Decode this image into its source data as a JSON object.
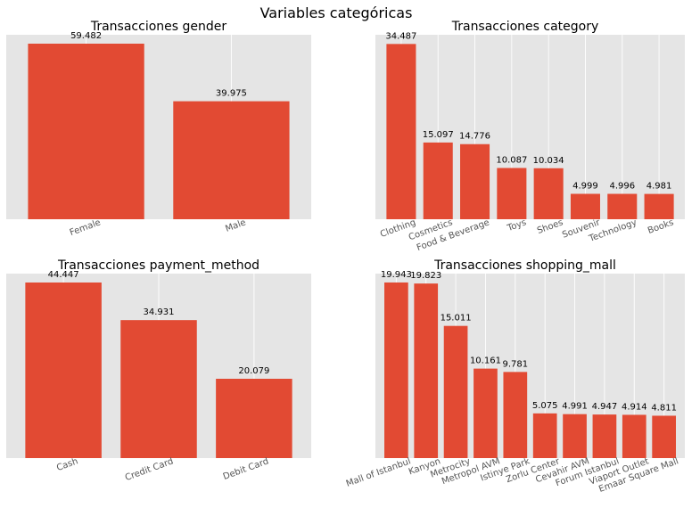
{
  "figure": {
    "title": "Variables categóricas"
  },
  "colors": {
    "bar": "#E24A33",
    "panel_background": "#E5E5E5",
    "grid": "#FFFFFF",
    "tick_text": "#555555"
  },
  "chart_data": [
    {
      "type": "bar",
      "title": "Transacciones gender",
      "categories": [
        "Female",
        "Male"
      ],
      "values": [
        59.482,
        39.975
      ],
      "data_labels": [
        "59.482",
        "39.975"
      ],
      "xlabel": "",
      "ylabel": "",
      "tick_rotation": 20,
      "grid": true
    },
    {
      "type": "bar",
      "title": "Transacciones category",
      "categories": [
        "Clothing",
        "Cosmetics",
        "Food & Beverage",
        "Toys",
        "Shoes",
        "Souvenir",
        "Technology",
        "Books"
      ],
      "values": [
        34.487,
        15.097,
        14.776,
        10.087,
        10.034,
        4.999,
        4.996,
        4.981
      ],
      "data_labels": [
        "34.487",
        "15.097",
        "14.776",
        "10.087",
        "10.034",
        "4.999",
        "4.996",
        "4.981"
      ],
      "xlabel": "",
      "ylabel": "",
      "tick_rotation": 20,
      "grid": true
    },
    {
      "type": "bar",
      "title": "Transacciones payment_method",
      "categories": [
        "Cash",
        "Credit Card",
        "Debit Card"
      ],
      "values": [
        44.447,
        34.931,
        20.079
      ],
      "data_labels": [
        "44.447",
        "34.931",
        "20.079"
      ],
      "xlabel": "",
      "ylabel": "",
      "tick_rotation": 20,
      "grid": true
    },
    {
      "type": "bar",
      "title": "Transacciones shopping_mall",
      "categories": [
        "Mall of Istanbul",
        "Kanyon",
        "Metrocity",
        "Metropol AVM",
        "Istinye Park",
        "Zorlu Center",
        "Cevahir AVM",
        "Forum Istanbul",
        "Viaport Outlet",
        "Emaar Square Mall"
      ],
      "values": [
        19.943,
        19.823,
        15.011,
        10.161,
        9.781,
        5.075,
        4.991,
        4.947,
        4.914,
        4.811
      ],
      "data_labels": [
        "19.943",
        "19.823",
        "15.011",
        "10.161",
        "9.781",
        "5.075",
        "4.991",
        "4.947",
        "4.914",
        "4.811"
      ],
      "xlabel": "",
      "ylabel": "",
      "tick_rotation": 20,
      "grid": true
    }
  ]
}
